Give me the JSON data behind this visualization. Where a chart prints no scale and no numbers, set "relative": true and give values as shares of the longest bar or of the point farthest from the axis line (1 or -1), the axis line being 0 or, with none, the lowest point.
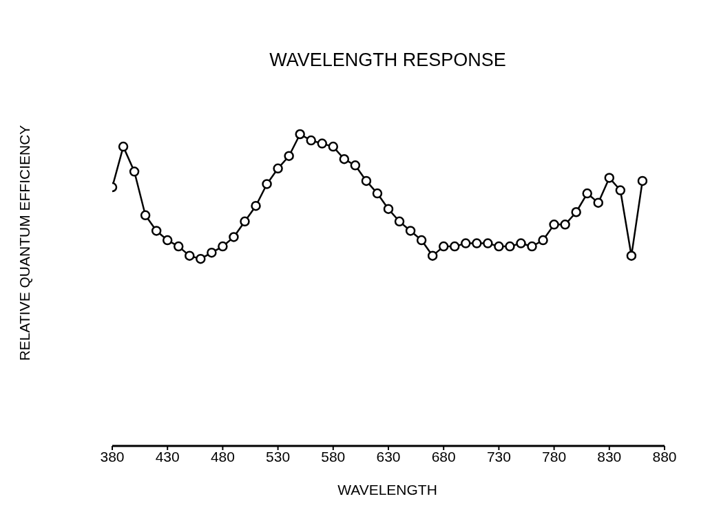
{
  "chart_data": {
    "type": "line",
    "title": "WAVELENGTH RESPONSE",
    "xlabel": "WAVELENGTH",
    "ylabel": "RELATIVE QUANTUM EFFICIENCY",
    "relative": true,
    "x": [
      380,
      390,
      400,
      410,
      420,
      430,
      440,
      450,
      460,
      470,
      480,
      490,
      500,
      510,
      520,
      530,
      540,
      550,
      560,
      570,
      580,
      590,
      600,
      610,
      620,
      630,
      640,
      650,
      660,
      670,
      680,
      690,
      700,
      710,
      720,
      730,
      740,
      750,
      760,
      770,
      780,
      790,
      800,
      810,
      820,
      830,
      840,
      850,
      860
    ],
    "values": [
      0.83,
      0.96,
      0.88,
      0.74,
      0.69,
      0.66,
      0.64,
      0.61,
      0.6,
      0.62,
      0.64,
      0.67,
      0.72,
      0.77,
      0.84,
      0.89,
      0.93,
      1,
      0.98,
      0.97,
      0.96,
      0.92,
      0.9,
      0.85,
      0.81,
      0.76,
      0.72,
      0.69,
      0.66,
      0.61,
      0.64,
      0.64,
      0.65,
      0.65,
      0.65,
      0.64,
      0.64,
      0.65,
      0.64,
      0.66,
      0.71,
      0.71,
      0.75,
      0.81,
      0.78,
      0.86,
      0.82,
      0.61,
      0.85
    ],
    "color": "#000000",
    "marker": "circle",
    "line_style": "solid",
    "xlim": [
      380,
      880
    ],
    "xticks": [
      380,
      430,
      480,
      530,
      580,
      630,
      680,
      730,
      780,
      830,
      880
    ]
  }
}
